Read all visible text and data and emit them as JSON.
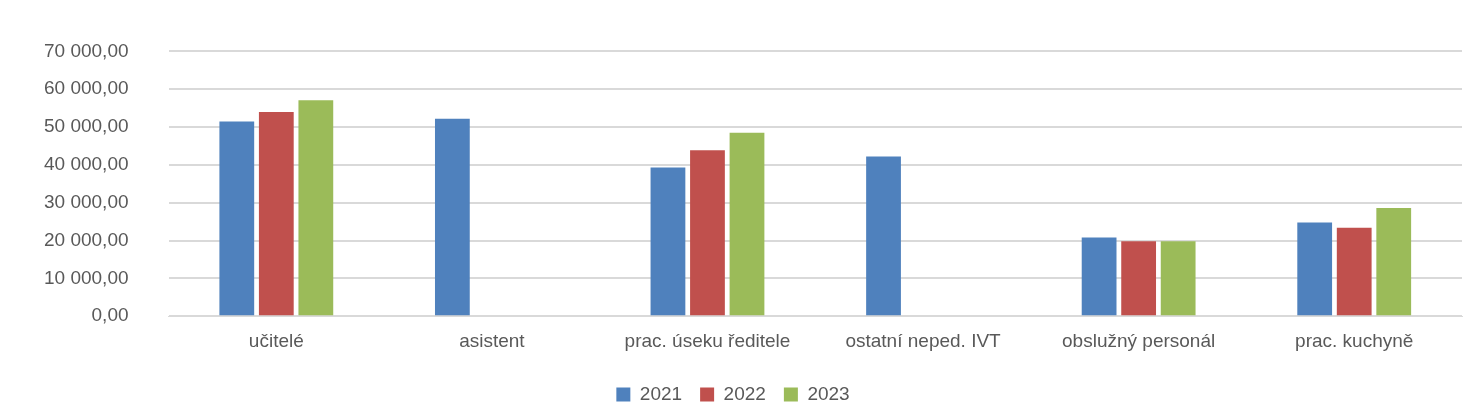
{
  "chart_data": {
    "type": "bar",
    "categories": [
      "učitelé",
      "asistent",
      "prac. úseku ředitele",
      "ostatní neped. IVT",
      "obslužný personál",
      "prac. kuchyně"
    ],
    "series": [
      {
        "name": "2021",
        "color": "#4f81bd",
        "values": [
          51500,
          52200,
          39300,
          42200,
          20800,
          24800
        ]
      },
      {
        "name": "2022",
        "color": "#c0504d",
        "values": [
          54000,
          null,
          43900,
          null,
          19800,
          23400
        ]
      },
      {
        "name": "2023",
        "color": "#9bbb59",
        "values": [
          57100,
          null,
          48500,
          null,
          19800,
          28600
        ]
      }
    ],
    "ylim": [
      0,
      70000
    ],
    "yticks": [
      {
        "value": 0,
        "label": "0,00"
      },
      {
        "value": 10000,
        "label": "10 000,00"
      },
      {
        "value": 20000,
        "label": "20 000,00"
      },
      {
        "value": 30000,
        "label": "30 000,00"
      },
      {
        "value": 40000,
        "label": "40 000,00"
      },
      {
        "value": 50000,
        "label": "50 000,00"
      },
      {
        "value": 60000,
        "label": "60 000,00"
      },
      {
        "value": 70000,
        "label": "70 000,00"
      }
    ],
    "grid": "y",
    "legend": "bottom"
  }
}
